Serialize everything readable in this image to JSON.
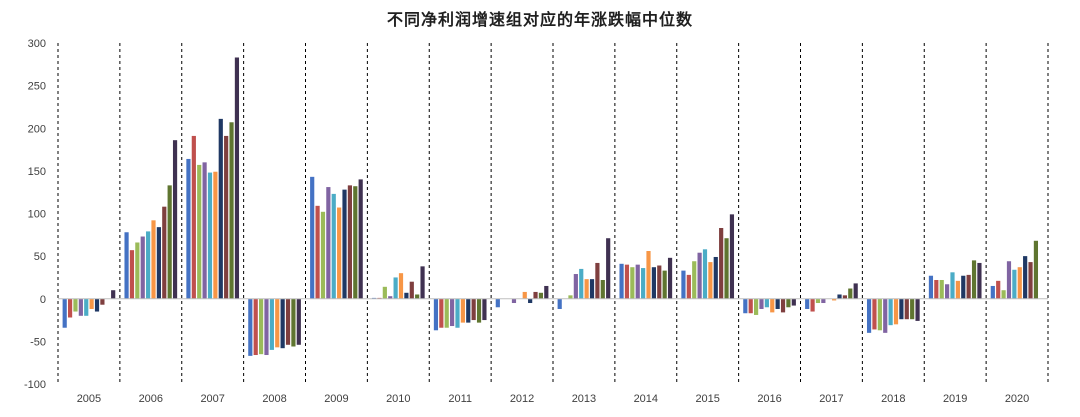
{
  "chart_data": {
    "type": "bar",
    "title": "不同净利润增速组对应的年涨跌幅中位数",
    "xlabel": "",
    "ylabel": "",
    "ylim": [
      -100,
      300
    ],
    "yticks": [
      300,
      250,
      200,
      150,
      100,
      50,
      0,
      -50,
      -100
    ],
    "grid": false,
    "legend": "none",
    "categories": [
      "2005",
      "2006",
      "2007",
      "2008",
      "2009",
      "2010",
      "2011",
      "2012",
      "2013",
      "2014",
      "2015",
      "2016",
      "2017",
      "2018",
      "2019",
      "2020"
    ],
    "series_colors": [
      "#4472c4",
      "#c0504d",
      "#9bbb59",
      "#8064a2",
      "#4bacc6",
      "#f79646",
      "#1f3864",
      "#7f3f3f",
      "#5f7530",
      "#3f3151"
    ],
    "groups": [
      [
        -34,
        -22,
        -15,
        -20,
        -20,
        -12,
        -15,
        -7,
        0,
        10
      ],
      [
        78,
        57,
        66,
        73,
        79,
        92,
        84,
        108,
        133,
        186
      ],
      [
        164,
        191,
        157,
        160,
        148,
        149,
        211,
        191,
        207,
        283
      ],
      [
        -67,
        -66,
        -65,
        -66,
        -60,
        -57,
        -58,
        -54,
        -56,
        -54
      ],
      [
        143,
        109,
        102,
        131,
        123,
        107,
        128,
        133,
        132,
        140
      ],
      [
        1,
        1,
        14,
        3,
        25,
        30,
        7,
        20,
        5,
        38
      ],
      [
        -37,
        -34,
        -34,
        -32,
        -34,
        -28,
        -28,
        -25,
        -28,
        -25
      ],
      [
        -10,
        0,
        0,
        -5,
        0,
        8,
        -5,
        8,
        7,
        15
      ],
      [
        -12,
        0,
        4,
        29,
        35,
        23,
        23,
        42,
        22,
        71
      ],
      [
        41,
        40,
        37,
        40,
        36,
        56,
        37,
        39,
        33,
        48
      ],
      [
        33,
        28,
        44,
        54,
        58,
        43,
        49,
        83,
        71,
        99
      ],
      [
        -17,
        -17,
        -19,
        -12,
        -10,
        -16,
        -12,
        -16,
        -10,
        -8
      ],
      [
        -12,
        -15,
        -5,
        -5,
        0,
        -2,
        5,
        4,
        12,
        18
      ],
      [
        -40,
        -36,
        -37,
        -40,
        -31,
        -30,
        -24,
        -24,
        -24,
        -26
      ],
      [
        27,
        22,
        22,
        17,
        31,
        21,
        27,
        28,
        45,
        42
      ],
      [
        15,
        21,
        10,
        44,
        34,
        37,
        50,
        43,
        68,
        0
      ]
    ]
  }
}
